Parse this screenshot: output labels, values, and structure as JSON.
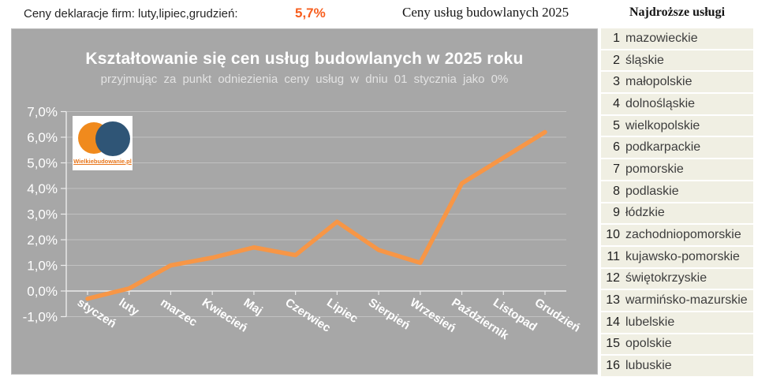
{
  "header": {
    "left_label": "Ceny deklaracje firm: luty,lipiec,grudzień:",
    "left_value": "5,7%",
    "center_title": "Ceny usług budowlanych 2025"
  },
  "logo": {
    "text": "Wielkiebudowanie.pl"
  },
  "chart_data": {
    "type": "line",
    "title": "Kształtowanie się cen usług budowlanych w 2025 roku",
    "subtitle": "przyjmując za punkt odniezienia ceny usług w dniu 01 stycznia jako 0%",
    "categories": [
      "styczeń",
      "luty",
      "marzec",
      "Kwiecień",
      "Maj",
      "Czerwiec",
      "Lipiec",
      "Sierpień",
      "Wrzesień",
      "Październik",
      "Listopad",
      "Grudzień"
    ],
    "values": [
      -0.3,
      0.1,
      1.0,
      1.3,
      1.7,
      1.4,
      2.7,
      1.6,
      1.1,
      4.2,
      5.2,
      6.2
    ],
    "xlabel": "",
    "ylabel": "",
    "ylim": [
      -1.0,
      7.0
    ],
    "ytick_values": [
      7,
      6,
      5,
      4,
      3,
      2,
      1,
      0,
      -1
    ],
    "ytick_labels": [
      "7,0%",
      "6,0%",
      "5,0%",
      "4,0%",
      "3,0%",
      "2,0%",
      "1,0%",
      "0,0%",
      "-1,0%"
    ],
    "grid": true,
    "legend": false,
    "line_color": "#F79646",
    "plot_bg": "#A7A7A7",
    "grid_color": "#C6C6C6",
    "axis_color": "#ECECEC",
    "label_color": "#FFFFFF"
  },
  "ranking": {
    "title": "Najdroższe usługi",
    "items": [
      {
        "rank": 1,
        "name": "mazowieckie"
      },
      {
        "rank": 2,
        "name": "śląskie"
      },
      {
        "rank": 3,
        "name": "małopolskie"
      },
      {
        "rank": 4,
        "name": "dolnośląskie"
      },
      {
        "rank": 5,
        "name": "wielkopolskie"
      },
      {
        "rank": 6,
        "name": "podkarpackie"
      },
      {
        "rank": 7,
        "name": "pomorskie"
      },
      {
        "rank": 8,
        "name": "podlaskie"
      },
      {
        "rank": 9,
        "name": "łódzkie"
      },
      {
        "rank": 10,
        "name": "zachodniopomorskie"
      },
      {
        "rank": 11,
        "name": "kujawsko-pomorskie"
      },
      {
        "rank": 12,
        "name": "świętokrzyskie"
      },
      {
        "rank": 13,
        "name": "warmińsko-mazurskie"
      },
      {
        "rank": 14,
        "name": "lubelskie"
      },
      {
        "rank": 15,
        "name": "opolskie"
      },
      {
        "rank": 16,
        "name": "lubuskie"
      }
    ]
  },
  "colors": {
    "header_value_orange": "#F75E1E",
    "series_orange": "#F79646",
    "plot_background_gray": "#A7A7A7",
    "ranking_row_cream": "#F0EFE3",
    "logo_orange": "#F08A1D",
    "logo_navy": "#2F5576"
  }
}
